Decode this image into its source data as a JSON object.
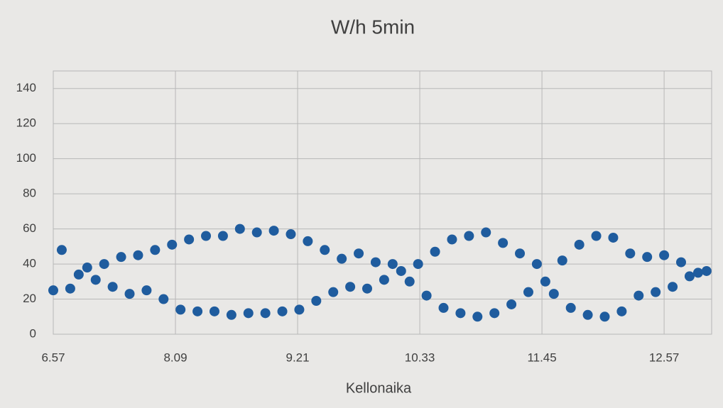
{
  "chart_data": {
    "type": "scatter",
    "title": "W/h 5min",
    "x_label": "Kellonaika",
    "x": [
      417,
      422,
      427,
      432,
      437,
      442,
      447,
      452,
      457,
      462,
      467,
      472,
      477,
      482,
      487,
      492,
      497,
      502,
      507,
      512,
      517,
      522,
      527,
      532,
      537,
      542,
      547,
      552,
      557,
      562,
      567,
      572,
      577,
      582,
      587,
      592,
      597,
      602,
      607,
      612,
      617,
      622,
      627,
      632,
      637,
      642,
      647,
      652,
      657,
      662,
      667,
      672,
      677,
      682,
      687,
      692,
      697,
      702,
      707,
      712,
      717,
      722,
      727,
      732,
      737,
      742,
      747,
      752,
      757,
      762,
      767,
      772,
      777,
      782,
      787,
      792,
      797,
      802
    ],
    "values": [
      25,
      48,
      26,
      34,
      38,
      31,
      40,
      27,
      44,
      23,
      45,
      25,
      48,
      20,
      51,
      14,
      54,
      13,
      56,
      13,
      56,
      11,
      60,
      12,
      58,
      12,
      59,
      13,
      57,
      14,
      53,
      19,
      48,
      24,
      43,
      27,
      46,
      26,
      41,
      31,
      40,
      36,
      30,
      40,
      22,
      47,
      15,
      54,
      12,
      56,
      10,
      58,
      12,
      52,
      17,
      46,
      24,
      40,
      30,
      23,
      42,
      15,
      51,
      11,
      56,
      10,
      55,
      13,
      46,
      22,
      44,
      24,
      45,
      27,
      41,
      33,
      35,
      36
    ],
    "color": "#1f5c9e",
    "xlim": [
      417,
      805
    ],
    "xticks": [
      {
        "value": 417,
        "label": "6.57"
      },
      {
        "value": 489,
        "label": "8.09"
      },
      {
        "value": 561,
        "label": "9.21"
      },
      {
        "value": 633,
        "label": "10.33"
      },
      {
        "value": 705,
        "label": "11.45"
      },
      {
        "value": 777,
        "label": "12.57"
      }
    ],
    "ylim": [
      0,
      150
    ],
    "yticks": [
      0,
      20,
      40,
      60,
      80,
      100,
      120,
      140
    ],
    "grid": true
  }
}
